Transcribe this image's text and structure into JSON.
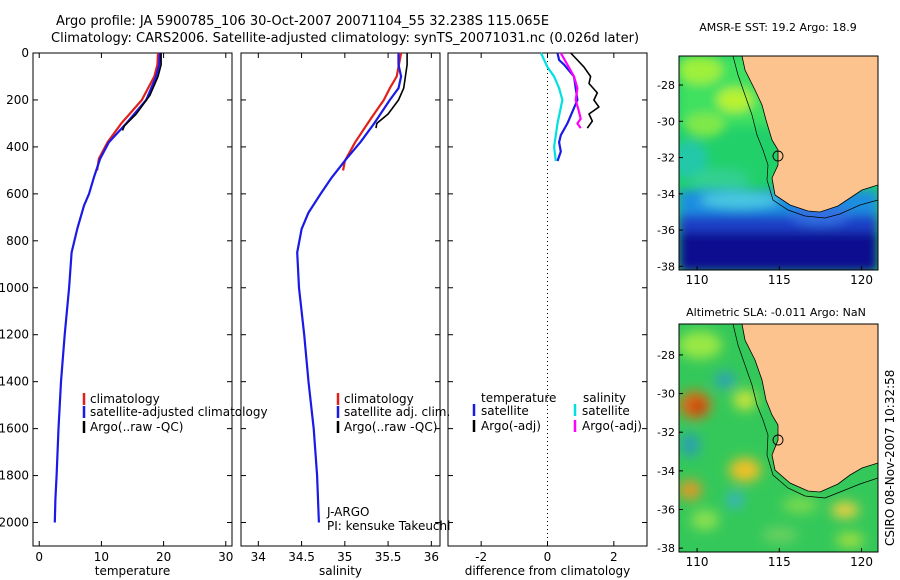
{
  "title_line1": "Argo profile: JA 5900785_106 30-Oct-2007 20071104_55 32.238S 115.065E",
  "title_line2": "Climatology: CARS2006. Satellite-adjusted climatology: synTS_20071031.nc (0.026d later)",
  "colors": {
    "climatology": "#e0201a",
    "satellite_adjusted": "#1a1ae6",
    "argo": "#000000",
    "salinity_satellite": "#00e0e0",
    "salinity_argo": "#ff00ff",
    "land": "#fcc38e"
  },
  "chart_data": [
    {
      "type": "line",
      "id": "temperature",
      "xlabel": "temperature",
      "ylabel": "",
      "xlim": [
        -1,
        31
      ],
      "ylim": [
        2100,
        0
      ],
      "xticks": [
        0,
        10,
        20,
        30
      ],
      "yticks": [
        0,
        200,
        400,
        600,
        800,
        1000,
        1200,
        1400,
        1600,
        1800,
        2000
      ],
      "legend": [
        "climatology",
        "satellite-adjusted climatology",
        "Argo(..raw -QC)"
      ],
      "legend_position": "lower-center",
      "series": [
        {
          "name": "climatology",
          "color": "#e0201a",
          "x": [
            19.1,
            19.0,
            18.5,
            16.5,
            13.2,
            11.0,
            9.6,
            9.3
          ],
          "y": [
            0,
            50,
            100,
            200,
            300,
            380,
            450,
            500
          ]
        },
        {
          "name": "satellite-adjusted climatology",
          "color": "#1a1ae6",
          "x": [
            19.4,
            19.3,
            18.8,
            17.2,
            14.0,
            11.2,
            9.8,
            8.8,
            8.0,
            7.2,
            6.1,
            5.2,
            4.8,
            4.1,
            3.5,
            3.1,
            2.8,
            2.6,
            2.5
          ],
          "y": [
            0,
            50,
            100,
            200,
            300,
            380,
            450,
            530,
            600,
            650,
            750,
            850,
            1000,
            1200,
            1400,
            1600,
            1800,
            1900,
            2000
          ]
        },
        {
          "name": "Argo(..raw -QC)",
          "color": "#000000",
          "x": [
            19.6,
            19.6,
            19.1,
            17.8,
            15.6,
            13.7,
            13.4
          ],
          "y": [
            0,
            50,
            100,
            180,
            260,
            310,
            330
          ]
        }
      ]
    },
    {
      "type": "line",
      "id": "salinity",
      "xlabel": "salinity",
      "ylabel": "",
      "xlim": [
        33.8,
        36.1
      ],
      "ylim": [
        2100,
        0
      ],
      "xticks": [
        34,
        34.5,
        35,
        35.5,
        36
      ],
      "legend": [
        "climatology",
        "satellite adj. clim.",
        "Argo(..raw -QC)"
      ],
      "legend_position": "lower-center",
      "annotations": [
        "J-ARGO",
        "PI: kensuke Takeuchi"
      ],
      "series": [
        {
          "name": "climatology",
          "color": "#e0201a",
          "x": [
            35.65,
            35.6,
            35.52,
            35.45,
            35.3,
            35.12,
            35.0,
            34.98
          ],
          "y": [
            0,
            100,
            150,
            200,
            280,
            380,
            460,
            500
          ]
        },
        {
          "name": "satellite adj. clim.",
          "color": "#1a1ae6",
          "x": [
            35.62,
            35.62,
            35.65,
            35.62,
            35.52,
            35.34,
            35.18,
            35.02,
            34.85,
            34.72,
            34.58,
            34.5,
            34.45,
            34.47,
            34.53,
            34.58,
            34.64,
            34.68,
            34.7
          ],
          "y": [
            0,
            50,
            100,
            150,
            200,
            300,
            380,
            450,
            530,
            600,
            680,
            750,
            850,
            1000,
            1200,
            1400,
            1600,
            1800,
            2000
          ]
        },
        {
          "name": "Argo(..raw -QC)",
          "color": "#000000",
          "x": [
            35.72,
            35.72,
            35.7,
            35.68,
            35.62,
            35.5,
            35.37,
            35.36
          ],
          "y": [
            0,
            50,
            100,
            150,
            200,
            260,
            300,
            320
          ]
        }
      ]
    },
    {
      "type": "line",
      "id": "difference",
      "xlabel": "difference from climatology",
      "ylabel": "",
      "xlim": [
        -3,
        3
      ],
      "ylim": [
        2100,
        0
      ],
      "xticks": [
        -2,
        0,
        2
      ],
      "legend": [
        "temperature",
        "satellite",
        "Argo(-adj)",
        "salinity",
        "satellite",
        "Argo(-adj)"
      ],
      "legend_position": "lower-center",
      "series": [
        {
          "name": "temperature satellite",
          "color": "#1a1ae6",
          "x": [
            0.3,
            0.35,
            0.5,
            0.8,
            0.9,
            0.6,
            0.4,
            0.35,
            0.4,
            0.3
          ],
          "y": [
            0,
            30,
            50,
            100,
            200,
            300,
            350,
            380,
            420,
            460
          ]
        },
        {
          "name": "temperature Argo(-adj)",
          "color": "#000000",
          "x": [
            0.7,
            0.9,
            1.1,
            1.3,
            1.25,
            1.5,
            1.4,
            1.55,
            1.25,
            1.35,
            1.2
          ],
          "y": [
            0,
            30,
            60,
            100,
            130,
            170,
            200,
            230,
            260,
            290,
            320
          ]
        },
        {
          "name": "salinity satellite",
          "color": "#00e0e0",
          "x": [
            -0.2,
            -0.1,
            0.0,
            0.2,
            0.35,
            0.45,
            0.3,
            0.2,
            0.25
          ],
          "y": [
            0,
            30,
            60,
            100,
            150,
            200,
            300,
            400,
            460
          ]
        },
        {
          "name": "salinity Argo(-adj)",
          "color": "#ff00ff",
          "x": [
            0.4,
            0.6,
            0.8,
            0.9,
            0.85,
            0.95,
            1.0,
            0.9,
            1.0
          ],
          "y": [
            0,
            50,
            100,
            150,
            200,
            250,
            280,
            300,
            320
          ]
        }
      ]
    }
  ],
  "maps": [
    {
      "id": "sst",
      "title": "AMSR-E SST: 19.2 Argo: 18.9",
      "xticks": [
        110,
        115,
        120
      ],
      "yticks": [
        -28,
        -30,
        -32,
        -34,
        -36,
        -38
      ],
      "marker": {
        "lon": 115.065,
        "lat": -32.238
      }
    },
    {
      "id": "sla",
      "title": "Altimetric SLA: -0.011 Argo: NaN",
      "xticks": [
        110,
        115,
        120
      ],
      "yticks": [
        -28,
        -30,
        -32,
        -34,
        -36,
        -38
      ],
      "marker": {
        "lon": 115.065,
        "lat": -32.238
      }
    }
  ],
  "credit": "CSIRO 08-Nov-2007 10:32:58"
}
